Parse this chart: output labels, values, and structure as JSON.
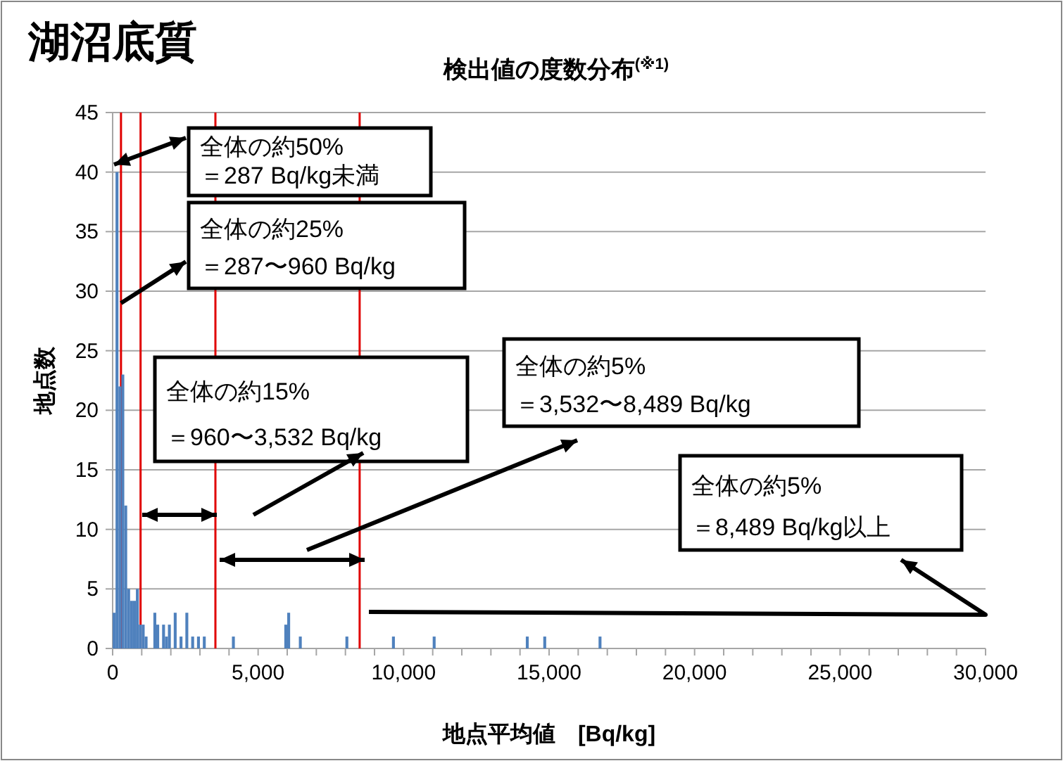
{
  "chart_data": {
    "type": "histogram",
    "title": "湖沼底質",
    "subtitle": "検出値の度数分布$^{(※1)}$",
    "xlabel": "地点平均値　[Bq/kg]",
    "ylabel": "地点数",
    "bins": [
      0,
      100,
      200,
      300,
      400,
      500,
      600,
      700,
      800,
      900,
      1000,
      1100,
      1200,
      1300,
      1400,
      1500,
      1600,
      1700,
      1800,
      1900,
      2000,
      2100,
      2200,
      2300,
      2400,
      2500,
      2600,
      2700,
      2800,
      2900,
      3000,
      3100,
      3200,
      3300,
      3400,
      3500,
      3600,
      3700,
      3800,
      3900,
      4000,
      4100,
      4200,
      4300,
      4400,
      4500,
      4600,
      4700,
      4800,
      4900,
      5000,
      5100,
      5200,
      5300,
      5400,
      5500,
      5600,
      5700,
      5800,
      5900,
      6000,
      6100,
      6200,
      6300,
      6400,
      6500,
      6600,
      6700,
      6800,
      6900,
      7000,
      7100,
      7200,
      7300,
      7400,
      7500,
      7600,
      7700,
      7800,
      7900,
      8000,
      8100,
      8200,
      8300,
      8400,
      8500,
      8600,
      8700,
      8800,
      8900,
      9000,
      9100,
      9200,
      9300,
      9400,
      9500,
      9600,
      9700,
      9800,
      9900,
      10000,
      10100,
      10200,
      10300,
      10400,
      10500,
      10600,
      10700,
      10800,
      10900,
      11000,
      11100,
      11200,
      11300,
      11400,
      11500,
      11600,
      11700,
      11800,
      11900,
      12000,
      12100,
      12200,
      12300,
      12400,
      12500,
      12600,
      12700,
      12800,
      12900,
      13000,
      13100,
      13200,
      13300,
      13400,
      13500,
      13600,
      13700,
      13800,
      13900,
      14000,
      14100,
      14200,
      14300,
      14400,
      14500,
      14600,
      14700,
      14800,
      14900,
      15000,
      15100,
      15200,
      15300,
      15400,
      15500,
      15600,
      15700,
      15800,
      15900,
      16000,
      16100,
      16200,
      16300,
      16400,
      16500,
      16600,
      16700,
      16800
    ],
    "values": [
      3,
      40,
      22,
      23,
      12,
      5,
      4,
      4,
      5,
      2,
      2,
      1,
      0,
      0,
      3,
      2,
      0,
      2,
      1,
      2,
      0,
      3,
      0,
      1,
      0,
      3,
      0,
      1,
      0,
      1,
      0,
      1,
      0,
      0,
      0,
      0,
      0,
      0,
      0,
      0,
      0,
      1,
      0,
      0,
      0,
      0,
      0,
      0,
      0,
      0,
      0,
      0,
      0,
      0,
      0,
      0,
      0,
      0,
      0,
      2,
      3,
      0,
      0,
      0,
      1,
      0,
      0,
      0,
      0,
      0,
      0,
      0,
      0,
      0,
      0,
      0,
      0,
      0,
      0,
      0,
      1,
      0,
      0,
      0,
      0,
      0,
      0,
      0,
      0,
      0,
      0,
      0,
      0,
      0,
      0,
      0,
      1,
      0,
      0,
      0,
      0,
      0,
      0,
      0,
      0,
      0,
      0,
      0,
      0,
      0,
      1,
      0,
      0,
      0,
      0,
      0,
      0,
      0,
      0,
      0,
      0,
      0,
      0,
      0,
      0,
      0,
      0,
      0,
      0,
      0,
      0,
      0,
      0,
      0,
      0,
      0,
      0,
      0,
      0,
      0,
      0,
      0,
      1,
      0,
      0,
      0,
      0,
      0,
      1,
      0,
      0,
      0,
      0,
      0,
      0,
      0,
      0,
      0,
      0,
      0,
      0,
      0,
      0,
      0,
      0,
      0,
      0,
      1
    ],
    "color": "#4f81bd",
    "xlim": [
      0,
      30000
    ],
    "xticks": [
      0,
      {
        "value": 1000,
        "label": null
      },
      {
        "value": 2000,
        "label": null
      },
      {
        "value": 3000,
        "label": null
      },
      {
        "value": 4000,
        "label": null
      },
      {
        "value": 5000,
        "label": "5,000"
      },
      {
        "value": 6000,
        "label": null
      },
      {
        "value": 7000,
        "label": null
      },
      {
        "value": 8000,
        "label": null
      },
      {
        "value": 9000,
        "label": null
      },
      {
        "value": 10000,
        "label": "10,000"
      },
      {
        "value": 11000,
        "label": null
      },
      {
        "value": 12000,
        "label": null
      },
      {
        "value": 13000,
        "label": null
      },
      {
        "value": 14000,
        "label": null
      },
      {
        "value": 15000,
        "label": "15,000"
      },
      {
        "value": 16000,
        "label": null
      },
      {
        "value": 17000,
        "label": null
      },
      {
        "value": 18000,
        "label": null
      },
      {
        "value": 19000,
        "label": null
      },
      {
        "value": 20000,
        "label": "20,000"
      },
      {
        "value": 21000,
        "label": null
      },
      {
        "value": 22000,
        "label": null
      },
      {
        "value": 23000,
        "label": null
      },
      {
        "value": 24000,
        "label": null
      },
      {
        "value": 25000,
        "label": "25,000"
      },
      {
        "value": 26000,
        "label": null
      },
      {
        "value": 27000,
        "label": null
      },
      {
        "value": 28000,
        "label": null
      },
      {
        "value": 29000,
        "label": null
      },
      {
        "value": 30000,
        "label": "30,000"
      }
    ],
    "ylim": [
      0,
      45
    ],
    "yticks": [
      0,
      5,
      10,
      15,
      20,
      25,
      30,
      35,
      40,
      45
    ],
    "grid": "y",
    "ref_lines": [
      {
        "axis": "x",
        "value": 287,
        "color": "#e00000"
      },
      {
        "axis": "x",
        "value": 960,
        "color": "#e00000"
      },
      {
        "axis": "x",
        "value": 3532,
        "color": "#e00000"
      },
      {
        "axis": "x",
        "value": 8489,
        "color": "#e00000"
      }
    ],
    "annotations": [
      "全体の約50%\n＝287 Bq/kg未満",
      {
        "text": "全体の約25%\n＝287〜960 Bq/kg",
        "x": 287,
        "y": 29
      },
      "全体の約15%\n＝960〜3,532 Bq/kg",
      "全体の約5%\n＝3,532〜8,489 Bq/kg",
      "全体の約5%\n＝8,489 Bq/kg以上"
    ]
  }
}
